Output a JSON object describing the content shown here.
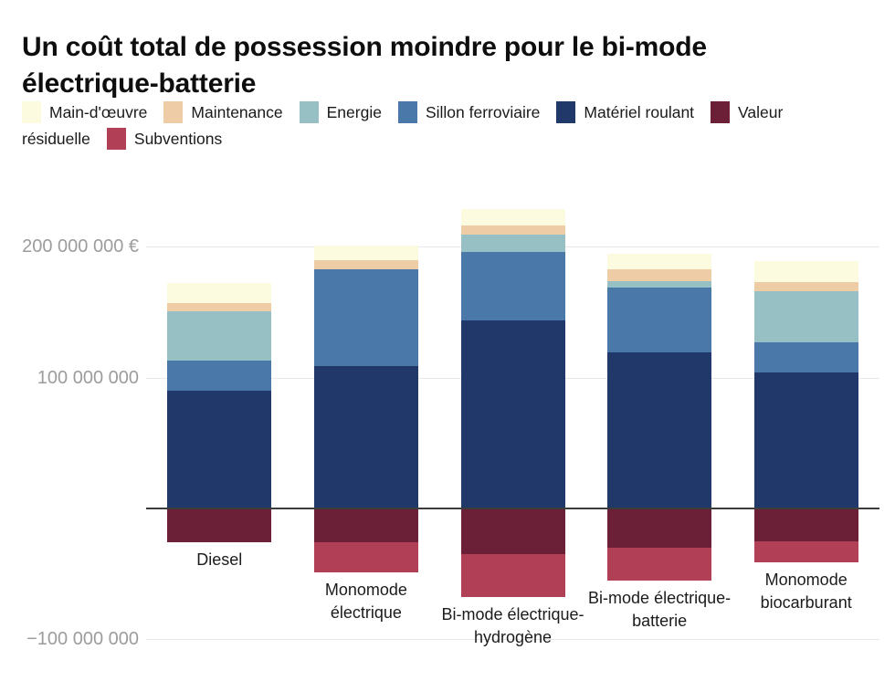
{
  "header": {
    "title": "Un coût total de possession moindre pour le bi-mode électrique-batterie"
  },
  "chart_data": {
    "type": "bar",
    "stacked": true,
    "title": "Un coût total de possession moindre pour le bi-mode électrique-batterie",
    "value_unit": "millions d'euros",
    "currency_symbol": "€",
    "categories": [
      "Diesel",
      "Monomode électrique",
      "Bi-mode électrique-hydrogène",
      "Bi-mode électrique-batterie",
      "Monomode biocarburant"
    ],
    "series": [
      {
        "name": "Main-d'œuvre",
        "color": "#fdfbdf",
        "values": [
          15,
          11,
          13,
          12,
          16
        ]
      },
      {
        "name": "Maintenance",
        "color": "#edcca6",
        "values": [
          6,
          7,
          7,
          9,
          7
        ]
      },
      {
        "name": "Energie",
        "color": "#96c0c3",
        "values": [
          38,
          0,
          13,
          5,
          39
        ]
      },
      {
        "name": "Sillon ferroviaire",
        "color": "#4a79a9",
        "values": [
          23,
          74,
          52,
          50,
          23
        ]
      },
      {
        "name": "Matériel roulant",
        "color": "#21386b",
        "values": [
          90,
          109,
          144,
          119,
          104
        ]
      },
      {
        "name": "Valeur résiduelle",
        "color": "#6b2038",
        "values": [
          -26,
          -26,
          -35,
          -30,
          -25
        ]
      },
      {
        "name": "Subventions",
        "color": "#b14056",
        "values": [
          0,
          -23,
          -33,
          -25,
          -16
        ]
      }
    ],
    "totals_positive": [
      172,
      201,
      229,
      195,
      189
    ],
    "totals_negative": [
      -26,
      -49,
      -68,
      -55,
      -41
    ],
    "yticks": [
      {
        "value": 200,
        "label": "200 000 000 €"
      },
      {
        "value": 100,
        "label": "100 000 000"
      },
      {
        "value": -100,
        "label": "−100 000 000"
      }
    ],
    "baseline": 0,
    "ylim": [
      -100,
      240
    ],
    "grid": true,
    "legend_position": "top"
  },
  "colors": {
    "grid": "#e8e8e8",
    "zero_axis": "#3c3c3c",
    "tick_text": "#9c9c9c",
    "label_text": "#1b1b1b",
    "title_text": "#0e0e0e"
  }
}
